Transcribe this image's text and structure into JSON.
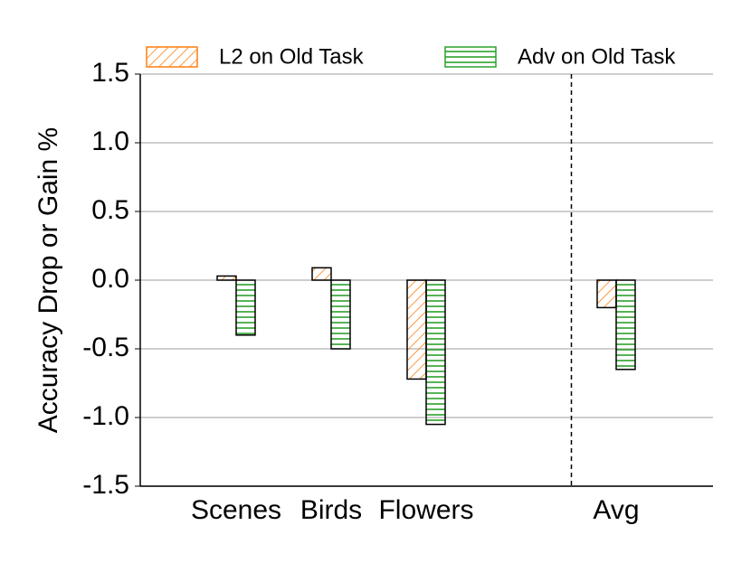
{
  "chart_data": {
    "type": "bar",
    "y_label": "Accuracy Drop or Gain %",
    "categories": [
      "Scenes",
      "Birds",
      "Flowers",
      null,
      "Avg"
    ],
    "series": [
      {
        "name": "L2 on Old Task",
        "color": "#ff7f0e",
        "hatch": "diagonal",
        "values": [
          0.03,
          0.09,
          -0.72,
          null,
          -0.2
        ]
      },
      {
        "name": "Adv on Old Task",
        "color": "#2ca02c",
        "hatch": "horizontal",
        "values": [
          -0.4,
          -0.5,
          -1.05,
          null,
          -0.65
        ]
      }
    ],
    "ylim": [
      -1.5,
      1.5
    ],
    "yticks": [
      -1.5,
      {
        "value": -1.0,
        "label": "-1.0"
      },
      -0.5,
      {
        "value": 0.0,
        "label": "0.0"
      },
      0.5,
      {
        "value": 1.0,
        "label": "1.0"
      },
      1.5
    ],
    "grid": true,
    "legend": "top"
  }
}
